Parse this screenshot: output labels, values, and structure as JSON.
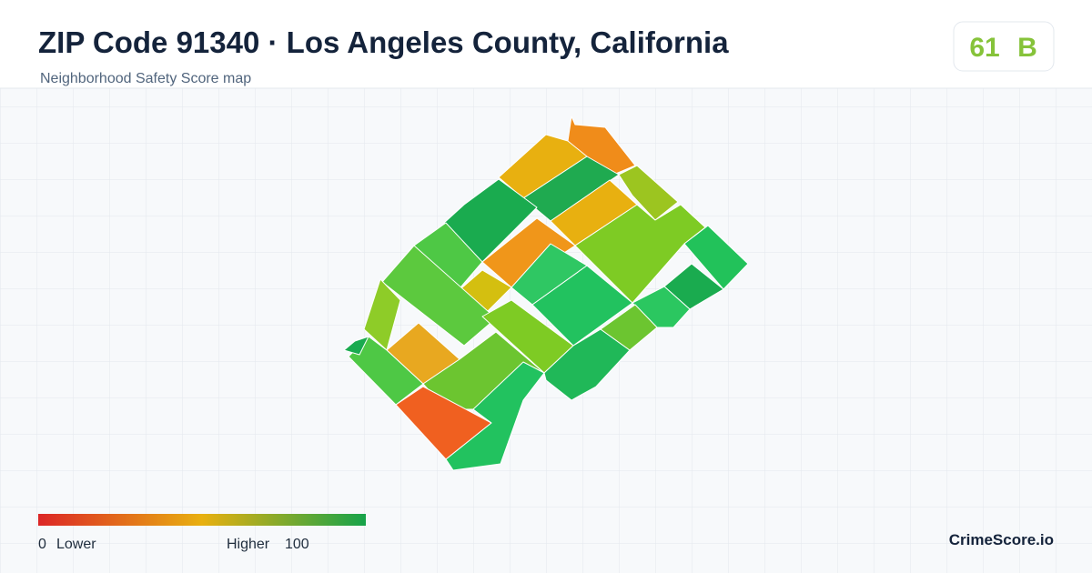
{
  "header": {
    "title": "ZIP Code 91340 · Los Angeles County, California",
    "subtitle": "Neighborhood Safety Score map"
  },
  "badge": {
    "score": 61,
    "grade": "B"
  },
  "legend": {
    "min": 0,
    "min_label": "Lower",
    "max_label": "Higher",
    "max": 100
  },
  "brand": "CrimeScore.io"
}
